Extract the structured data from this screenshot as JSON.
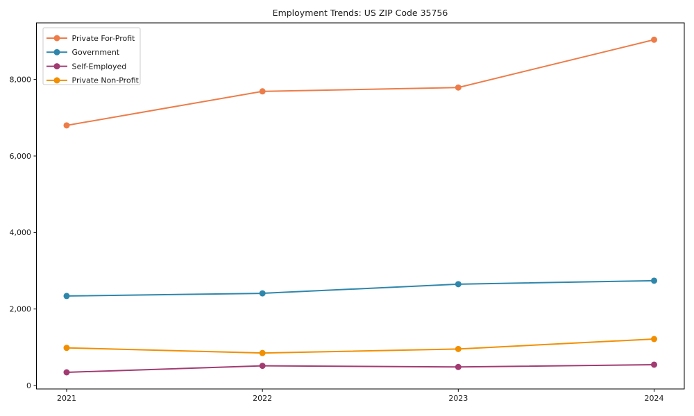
{
  "page": {
    "background": "#ffffff"
  },
  "chart_data": {
    "type": "line",
    "title": "Employment Trends: US ZIP Code 35756",
    "categories": [
      "2021",
      "2022",
      "2023",
      "2024"
    ],
    "series": [
      {
        "name": "Private For-Profit",
        "color": "#ED7C49",
        "values": [
          6800,
          7690,
          7790,
          9040
        ]
      },
      {
        "name": "Government",
        "color": "#2E86AB",
        "values": [
          2340,
          2410,
          2650,
          2740
        ]
      },
      {
        "name": "Self-Employed",
        "color": "#A23B72",
        "values": [
          345,
          515,
          485,
          545
        ]
      },
      {
        "name": "Private Non-Profit",
        "color": "#F18F01",
        "values": [
          985,
          850,
          955,
          1215
        ]
      }
    ],
    "xlabel": "",
    "ylabel": "",
    "ylim": [
      -90,
      9480
    ],
    "yticks": [
      0,
      2000,
      4000,
      6000,
      8000
    ],
    "ytick_labels": [
      "0",
      "2,000",
      "4,000",
      "6,000",
      "8,000"
    ],
    "grid": false,
    "legend_position": "upper-left",
    "marker_style": "circle",
    "line_width": 2,
    "marker_radius": 4.5,
    "axis_color": "#000000",
    "text_color": "#1a1a1a",
    "legend_border_color": "#cccccc",
    "legend_background": "#ffffff"
  }
}
